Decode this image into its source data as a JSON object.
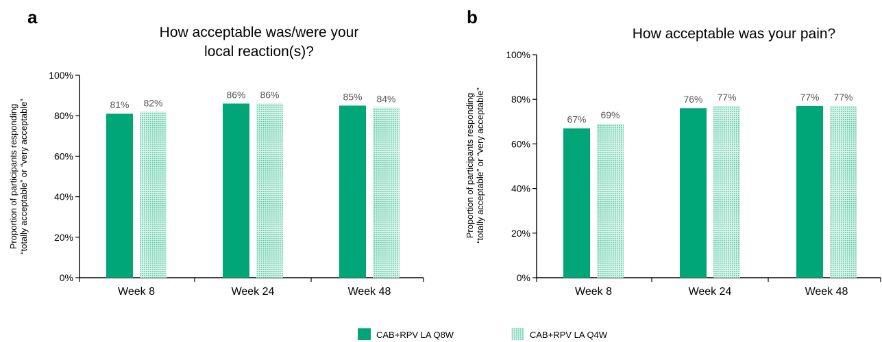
{
  "colors": {
    "q8w": "#00a678",
    "q4w_pattern": "#5cc9a4",
    "q4w_bg": "#d9f3ea",
    "axis": "#000000",
    "value_label": "#555555"
  },
  "legend": {
    "items": [
      {
        "label": "CAB+RPV LA Q8W",
        "style": "solid"
      },
      {
        "label": "CAB+RPV LA Q4W",
        "style": "dotted"
      }
    ]
  },
  "chart_data": [
    {
      "panel_letter": "a",
      "type": "bar",
      "title_lines": [
        "How acceptable was/were your",
        "local reaction(s)?"
      ],
      "ylabel_lines": [
        "Proportion of participants responding",
        "“totally acceptable” or “very acceptable”"
      ],
      "xlabel": "",
      "categories": [
        "Week 8",
        "Week 24",
        "Week 48"
      ],
      "series": [
        {
          "name": "CAB+RPV LA Q8W",
          "values": [
            81,
            86,
            85
          ],
          "value_labels": [
            "81%",
            "86%",
            "85%"
          ]
        },
        {
          "name": "CAB+RPV LA Q4W",
          "values": [
            82,
            86,
            84
          ],
          "value_labels": [
            "82%",
            "86%",
            "84%"
          ]
        }
      ],
      "ylim": [
        0,
        100
      ],
      "yticks": [
        "0%",
        "20%",
        "40%",
        "60%",
        "80%",
        "100%"
      ],
      "grid": false
    },
    {
      "panel_letter": "b",
      "type": "bar",
      "title_lines": [
        "How acceptable was your pain?"
      ],
      "ylabel_lines": [
        "Proportion of participants responding",
        "“totally acceptable” or “very acceptable”"
      ],
      "xlabel": "",
      "categories": [
        "Week 8",
        "Week 24",
        "Week 48"
      ],
      "series": [
        {
          "name": "CAB+RPV LA Q8W",
          "values": [
            67,
            76,
            77
          ],
          "value_labels": [
            "67%",
            "76%",
            "77%"
          ]
        },
        {
          "name": "CAB+RPV LA Q4W",
          "values": [
            69,
            77,
            77
          ],
          "value_labels": [
            "69%",
            "77%",
            "77%"
          ]
        }
      ],
      "ylim": [
        0,
        100
      ],
      "yticks": [
        "0%",
        "20%",
        "40%",
        "60%",
        "80%",
        "100%"
      ],
      "grid": false
    }
  ]
}
